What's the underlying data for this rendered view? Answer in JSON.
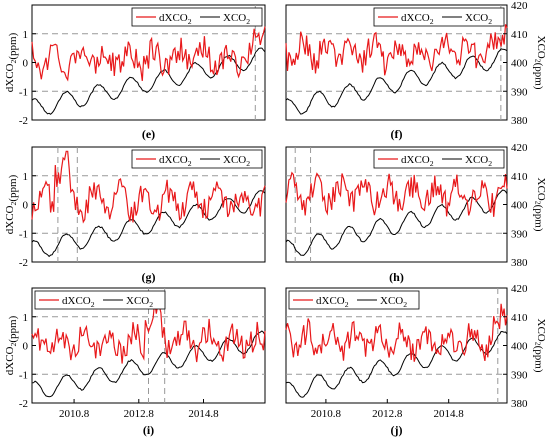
{
  "chart_data": [
    {
      "panel": "(e)",
      "type": "line",
      "ylabel_left": "dXCO₂(ppm)",
      "ylabel_right": "",
      "y_ticks_left": [
        "1",
        "0",
        "-1",
        "-2"
      ],
      "y_ticks_right": [],
      "x_ticks": [
        "2010.8",
        "2012.8",
        "2014.8"
      ],
      "x_ticks_visible": false,
      "ylim_left": [
        -2,
        2
      ],
      "ylim_right": [
        380,
        420
      ],
      "xlim": [
        2009.5,
        2016.7
      ],
      "grid": "dashed reference lines",
      "legend": "top-right",
      "series": [
        {
          "name": "dXCO₂",
          "color": "#e8191b",
          "axis": "left"
        },
        {
          "name": "XCO₂",
          "color": "#000000",
          "axis": "right"
        }
      ],
      "h_ref_left": [
        1,
        -1
      ],
      "v_ref_x": [
        2016.4
      ]
    },
    {
      "panel": "(f)",
      "type": "line",
      "ylabel_left": "",
      "ylabel_right": "XCO₂(ppm)",
      "y_ticks_left": [],
      "y_ticks_right": [
        "420",
        "410",
        "400",
        "390",
        "380"
      ],
      "x_ticks": [],
      "x_ticks_visible": false,
      "ylim_left": [
        -2,
        2
      ],
      "ylim_right": [
        380,
        420
      ],
      "xlim": [
        2009.5,
        2016.7
      ],
      "grid": "dashed reference lines",
      "legend": "top-right",
      "series": [
        {
          "name": "dXCO₂",
          "color": "#e8191b",
          "axis": "left"
        },
        {
          "name": "XCO₂",
          "color": "#000000",
          "axis": "right"
        }
      ],
      "h_ref_left": [
        1,
        -1
      ],
      "v_ref_x": [
        2016.5
      ]
    },
    {
      "panel": "(g)",
      "type": "line",
      "ylabel_left": "dXCO₂(ppm)",
      "ylabel_right": "",
      "y_ticks_left": [
        "1",
        "0",
        "-1",
        "-2"
      ],
      "y_ticks_right": [],
      "x_ticks": [],
      "x_ticks_visible": false,
      "ylim_left": [
        -2,
        2
      ],
      "ylim_right": [
        380,
        420
      ],
      "xlim": [
        2009.5,
        2016.7
      ],
      "grid": "dashed reference lines",
      "legend": "top-right",
      "series": [
        {
          "name": "dXCO₂",
          "color": "#e8191b",
          "axis": "left"
        },
        {
          "name": "XCO₂",
          "color": "#000000",
          "axis": "right"
        }
      ],
      "h_ref_left": [
        1,
        -1
      ],
      "v_ref_x": [
        2010.3,
        2010.9
      ]
    },
    {
      "panel": "(h)",
      "type": "line",
      "ylabel_left": "",
      "ylabel_right": "XCO₂(ppm)",
      "y_ticks_left": [],
      "y_ticks_right": [
        "420",
        "410",
        "400",
        "390",
        "380"
      ],
      "x_ticks": [],
      "x_ticks_visible": false,
      "ylim_left": [
        -2,
        2
      ],
      "ylim_right": [
        380,
        420
      ],
      "xlim": [
        2009.5,
        2016.7
      ],
      "grid": "dashed reference lines",
      "legend": "top-right",
      "series": [
        {
          "name": "dXCO₂",
          "color": "#e8191b",
          "axis": "left"
        },
        {
          "name": "XCO₂",
          "color": "#000000",
          "axis": "right"
        }
      ],
      "h_ref_left": [
        1,
        -1
      ],
      "v_ref_x": [
        2009.8,
        2010.3
      ]
    },
    {
      "panel": "(i)",
      "type": "line",
      "ylabel_left": "dXCO₂(ppm)",
      "ylabel_right": "",
      "y_ticks_left": [
        "1",
        "0",
        "-1",
        "-2"
      ],
      "y_ticks_right": [],
      "x_ticks": [
        "2010.8",
        "2012.8",
        "2014.8"
      ],
      "x_ticks_visible": true,
      "ylim_left": [
        -2,
        2
      ],
      "ylim_right": [
        380,
        420
      ],
      "xlim": [
        2009.5,
        2016.7
      ],
      "grid": "dashed reference lines",
      "legend": "top-left",
      "series": [
        {
          "name": "dXCO₂",
          "color": "#e8191b",
          "axis": "left"
        },
        {
          "name": "XCO₂",
          "color": "#000000",
          "axis": "right"
        }
      ],
      "h_ref_left": [
        1,
        -1
      ],
      "v_ref_x": [
        2013.1,
        2013.6
      ]
    },
    {
      "panel": "(j)",
      "type": "line",
      "ylabel_left": "",
      "ylabel_right": "XCO₂(ppm)",
      "y_ticks_left": [],
      "y_ticks_right": [
        "420",
        "410",
        "400",
        "390",
        "380"
      ],
      "x_ticks": [
        "2010.8",
        "2012.8",
        "2014.8"
      ],
      "x_ticks_visible": true,
      "ylim_left": [
        -2,
        2
      ],
      "ylim_right": [
        380,
        420
      ],
      "xlim": [
        2009.5,
        2016.7
      ],
      "grid": "dashed reference lines",
      "legend": "top-left",
      "series": [
        {
          "name": "dXCO₂",
          "color": "#e8191b",
          "axis": "left"
        },
        {
          "name": "XCO₂",
          "color": "#000000",
          "axis": "right"
        }
      ],
      "h_ref_left": [
        1,
        -1
      ],
      "v_ref_x": [
        2016.4
      ]
    }
  ]
}
